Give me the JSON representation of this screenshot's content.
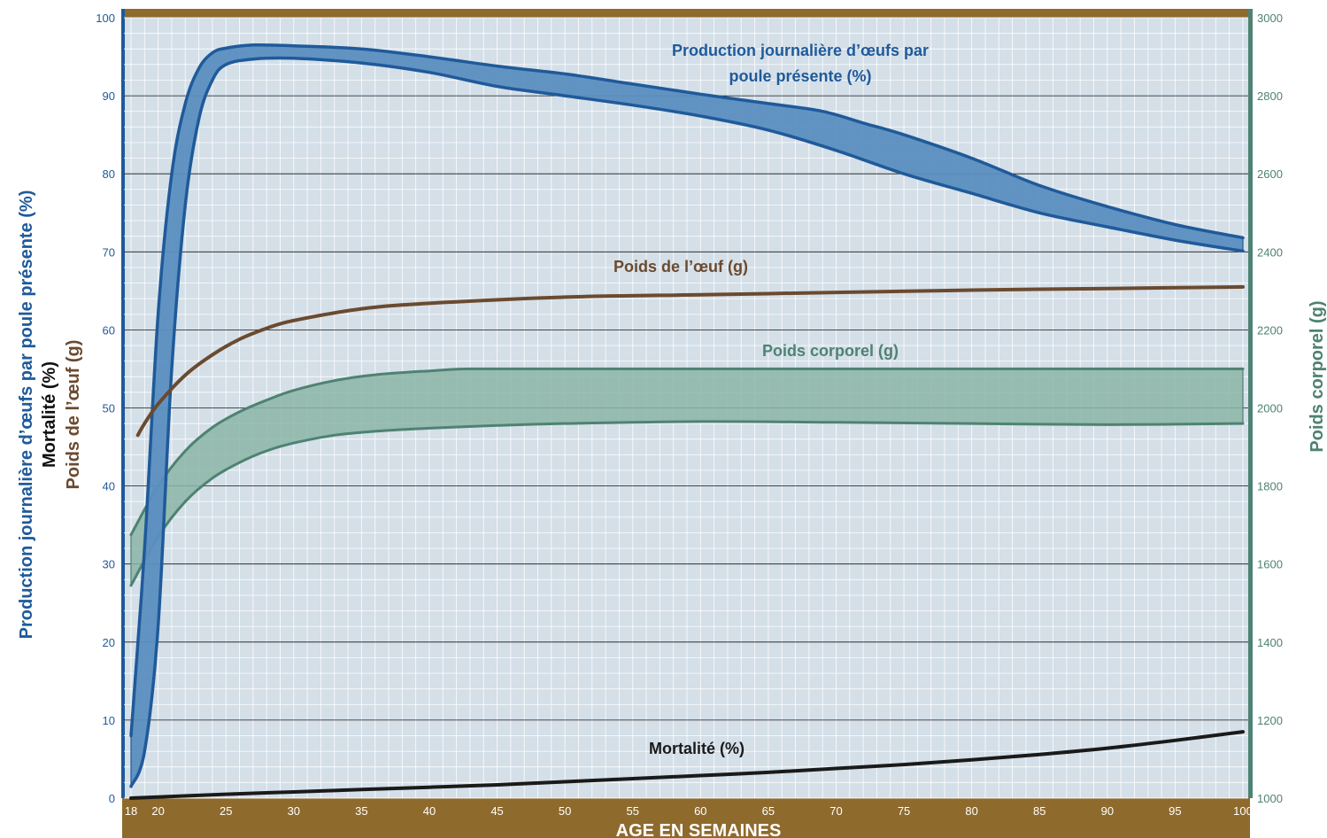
{
  "colors": {
    "production": "#1f5a9a",
    "production_fill": "#5b8ec0",
    "egg_weight": "#6b4a2f",
    "body_weight": "#4e8272",
    "body_fill": "#8bb5a6",
    "mortality": "#1a1a1a",
    "frame": "#8f6a2d",
    "plot_bg": "#d4dfe8"
  },
  "chart_data": {
    "type": "line",
    "x_axis": {
      "label": "AGE EN SEMAINES",
      "range": [
        18,
        100
      ],
      "ticks": [
        18,
        20,
        25,
        30,
        35,
        40,
        45,
        50,
        55,
        60,
        65,
        70,
        75,
        80,
        85,
        90,
        95,
        100
      ]
    },
    "y_left": {
      "labels": [
        "Production journalière d’œufs par poule présente (%)",
        "Mortalité (%)",
        "Poids de l’œuf (g)"
      ],
      "range": [
        0,
        100
      ],
      "ticks": [
        0,
        10,
        20,
        30,
        40,
        50,
        60,
        70,
        80,
        90,
        100
      ]
    },
    "y_right": {
      "label": "Poids corporel (g)",
      "range": [
        1000,
        3000
      ],
      "ticks": [
        1000,
        1200,
        1400,
        1600,
        1800,
        2000,
        2200,
        2400,
        2600,
        2800,
        3000
      ]
    },
    "series": [
      {
        "name": "Production journalière d’œufs par poule présente (%)",
        "label_lines": [
          "Production journalière d’œufs par",
          "poule présente (%)"
        ],
        "type": "band",
        "axis": "left",
        "upper": [
          [
            18,
            8
          ],
          [
            19,
            32
          ],
          [
            20,
            62
          ],
          [
            21,
            80
          ],
          [
            22,
            89
          ],
          [
            23,
            93.5
          ],
          [
            24,
            95.5
          ],
          [
            25,
            96.1
          ],
          [
            27,
            96.5
          ],
          [
            30,
            96.4
          ],
          [
            35,
            96
          ],
          [
            40,
            95
          ],
          [
            45,
            93.8
          ],
          [
            50,
            92.8
          ],
          [
            55,
            91.5
          ],
          [
            60,
            90.2
          ],
          [
            65,
            89
          ],
          [
            69,
            88
          ],
          [
            72,
            86.5
          ],
          [
            75,
            85
          ],
          [
            80,
            82
          ],
          [
            85,
            78.5
          ],
          [
            90,
            75.8
          ],
          [
            95,
            73.5
          ],
          [
            100,
            71.8
          ]
        ],
        "lower": [
          [
            18,
            1.5
          ],
          [
            19,
            6
          ],
          [
            20,
            22
          ],
          [
            21,
            55
          ],
          [
            22,
            76
          ],
          [
            23,
            87
          ],
          [
            24,
            92
          ],
          [
            25,
            94
          ],
          [
            27,
            94.7
          ],
          [
            30,
            94.8
          ],
          [
            35,
            94.2
          ],
          [
            40,
            93
          ],
          [
            45,
            91.2
          ],
          [
            50,
            90
          ],
          [
            55,
            88.8
          ],
          [
            60,
            87.4
          ],
          [
            65,
            85.6
          ],
          [
            70,
            83
          ],
          [
            75,
            80
          ],
          [
            80,
            77.5
          ],
          [
            85,
            75
          ],
          [
            90,
            73.2
          ],
          [
            95,
            71.5
          ],
          [
            100,
            70.1
          ]
        ]
      },
      {
        "name": "Poids de l’œuf (g)",
        "type": "line",
        "axis": "left",
        "points": [
          [
            18.5,
            46.5
          ],
          [
            19,
            48
          ],
          [
            20,
            50.5
          ],
          [
            22,
            54.2
          ],
          [
            24,
            56.8
          ],
          [
            26,
            58.8
          ],
          [
            28,
            60.2
          ],
          [
            30,
            61.2
          ],
          [
            35,
            62.7
          ],
          [
            40,
            63.4
          ],
          [
            50,
            64.2
          ],
          [
            60,
            64.5
          ],
          [
            70,
            64.8
          ],
          [
            80,
            65.1
          ],
          [
            90,
            65.3
          ],
          [
            100,
            65.5
          ]
        ]
      },
      {
        "name": "Poids corporel (g)",
        "type": "band",
        "axis": "right",
        "upper": [
          [
            18,
            1675
          ],
          [
            20,
            1800
          ],
          [
            22,
            1890
          ],
          [
            24,
            1950
          ],
          [
            26,
            1990
          ],
          [
            28,
            2020
          ],
          [
            30,
            2045
          ],
          [
            33,
            2070
          ],
          [
            36,
            2085
          ],
          [
            40,
            2095
          ],
          [
            43,
            2100
          ],
          [
            50,
            2100
          ],
          [
            60,
            2100
          ],
          [
            70,
            2100
          ],
          [
            80,
            2100
          ],
          [
            90,
            2100
          ],
          [
            100,
            2100
          ]
        ],
        "lower": [
          [
            18,
            1545
          ],
          [
            20,
            1670
          ],
          [
            22,
            1760
          ],
          [
            24,
            1820
          ],
          [
            26,
            1860
          ],
          [
            28,
            1890
          ],
          [
            30,
            1910
          ],
          [
            33,
            1930
          ],
          [
            36,
            1940
          ],
          [
            40,
            1948
          ],
          [
            45,
            1955
          ],
          [
            50,
            1960
          ],
          [
            60,
            1965
          ],
          [
            70,
            1963
          ],
          [
            80,
            1960
          ],
          [
            90,
            1957
          ],
          [
            100,
            1960
          ]
        ]
      },
      {
        "name": "Mortalité (%)",
        "type": "line",
        "axis": "left",
        "points": [
          [
            18,
            0
          ],
          [
            25,
            0.5
          ],
          [
            30,
            0.8
          ],
          [
            35,
            1.1
          ],
          [
            40,
            1.4
          ],
          [
            45,
            1.7
          ],
          [
            50,
            2.1
          ],
          [
            55,
            2.5
          ],
          [
            60,
            2.9
          ],
          [
            65,
            3.3
          ],
          [
            70,
            3.8
          ],
          [
            75,
            4.3
          ],
          [
            80,
            4.9
          ],
          [
            85,
            5.6
          ],
          [
            90,
            6.4
          ],
          [
            95,
            7.4
          ],
          [
            100,
            8.5
          ]
        ]
      }
    ]
  }
}
